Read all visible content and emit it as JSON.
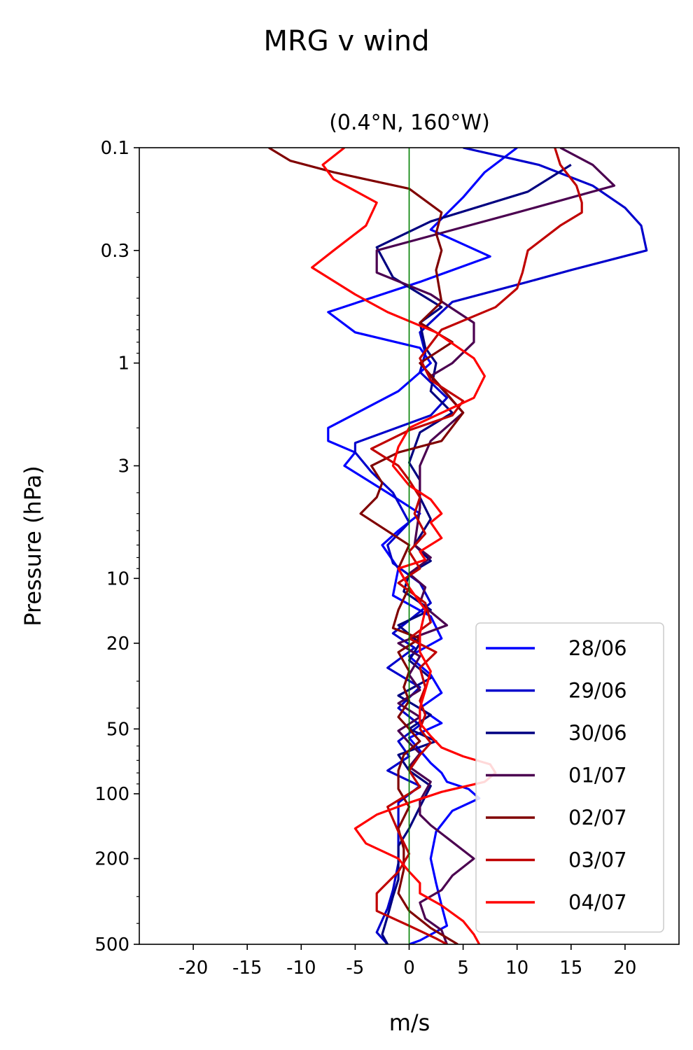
{
  "chart_data": {
    "type": "line",
    "title": "MRG v wind",
    "subtitle": "(0.4°N, 160°W)",
    "xlabel": "m/s",
    "ylabel": "Pressure (hPa)",
    "xlim": [
      -25,
      25
    ],
    "ylim": [
      500,
      0.1
    ],
    "yscale": "log",
    "x_ticks": [
      -20,
      -15,
      -10,
      -5,
      0,
      5,
      10,
      15,
      20
    ],
    "y_ticks": [
      0.1,
      0.3,
      1,
      3,
      10,
      20,
      50,
      100,
      200,
      500
    ],
    "zero_line_color": "#008000",
    "legend_position": "lower right",
    "series": [
      {
        "name": "28/06",
        "color": "#0000ff",
        "points": [
          [
            10,
            0.1
          ],
          [
            7,
            0.13
          ],
          [
            5,
            0.17
          ],
          [
            2,
            0.24
          ],
          [
            7.5,
            0.32
          ],
          [
            1,
            0.42
          ],
          [
            -7.5,
            0.58
          ],
          [
            -5,
            0.72
          ],
          [
            1,
            0.85
          ],
          [
            2,
            1.0
          ],
          [
            -1,
            1.35
          ],
          [
            -7.5,
            2.0
          ],
          [
            -7.5,
            2.3
          ],
          [
            -5,
            2.6
          ],
          [
            -6,
            3.0
          ],
          [
            -2,
            4.0
          ],
          [
            1,
            5.0
          ],
          [
            -1,
            6.0
          ],
          [
            -2.5,
            7.0
          ],
          [
            -1,
            9.0
          ],
          [
            -1.5,
            12
          ],
          [
            2,
            15
          ],
          [
            3,
            19
          ],
          [
            0,
            23
          ],
          [
            2,
            28
          ],
          [
            3,
            34
          ],
          [
            1,
            40
          ],
          [
            3,
            47
          ],
          [
            0,
            55
          ],
          [
            1,
            63
          ],
          [
            2,
            72
          ],
          [
            3,
            80
          ],
          [
            3.5,
            88
          ],
          [
            5.5,
            95
          ],
          [
            6.5,
            105
          ],
          [
            4,
            120
          ],
          [
            2.5,
            150
          ],
          [
            2,
            200
          ],
          [
            2.5,
            260
          ],
          [
            3,
            330
          ],
          [
            3.5,
            410
          ],
          [
            1,
            480
          ],
          [
            0,
            500
          ]
        ]
      },
      {
        "name": "29/06",
        "color": "#0000cc",
        "points": [
          [
            5,
            0.1
          ],
          [
            12,
            0.12
          ],
          [
            17,
            0.15
          ],
          [
            20,
            0.19
          ],
          [
            21.5,
            0.23
          ],
          [
            22,
            0.3
          ],
          [
            15,
            0.37
          ],
          [
            11,
            0.42
          ],
          [
            4,
            0.52
          ],
          [
            1,
            0.72
          ],
          [
            1.5,
            0.9
          ],
          [
            1,
            1.1
          ],
          [
            3.5,
            1.45
          ],
          [
            2,
            1.75
          ],
          [
            -5,
            2.35
          ],
          [
            -5,
            2.6
          ],
          [
            -3.5,
            3.2
          ],
          [
            -1.5,
            4.0
          ],
          [
            0,
            5.5
          ],
          [
            -2,
            7.0
          ],
          [
            -1.5,
            8.5
          ],
          [
            1,
            10.5
          ],
          [
            2,
            13
          ],
          [
            -1.5,
            18
          ],
          [
            0.5,
            21
          ],
          [
            -2,
            26
          ],
          [
            1,
            32
          ],
          [
            -1,
            40
          ],
          [
            1,
            48
          ],
          [
            -1,
            57
          ],
          [
            0,
            67
          ],
          [
            -2,
            78
          ],
          [
            1,
            92
          ],
          [
            -1,
            110
          ],
          [
            -1,
            150
          ],
          [
            -1,
            210
          ],
          [
            -1.5,
            280
          ],
          [
            -2,
            340
          ],
          [
            -3,
            440
          ],
          [
            -2,
            500
          ]
        ]
      },
      {
        "name": "30/06",
        "color": "#000080",
        "points": [
          [
            15,
            0.12
          ],
          [
            11,
            0.16
          ],
          [
            2,
            0.22
          ],
          [
            -3,
            0.29
          ],
          [
            -1.5,
            0.4
          ],
          [
            3,
            0.55
          ],
          [
            1,
            0.65
          ],
          [
            1.5,
            0.85
          ],
          [
            2.5,
            1.0
          ],
          [
            2,
            1.35
          ],
          [
            4,
            1.7
          ],
          [
            1,
            2.1
          ],
          [
            0,
            2.9
          ],
          [
            1,
            3.5
          ],
          [
            1,
            4.2
          ],
          [
            2,
            5.3
          ],
          [
            0.5,
            7.0
          ],
          [
            2,
            8.3
          ],
          [
            0,
            9.5
          ],
          [
            -0.5,
            11.5
          ],
          [
            2,
            14
          ],
          [
            -1,
            16.5
          ],
          [
            1,
            20
          ],
          [
            0,
            24
          ],
          [
            2,
            29
          ],
          [
            -1,
            35
          ],
          [
            2,
            43
          ],
          [
            0,
            50
          ],
          [
            2.5,
            57
          ],
          [
            -1,
            66
          ],
          [
            0,
            78
          ],
          [
            2,
            92
          ],
          [
            1,
            115
          ],
          [
            0,
            145
          ],
          [
            -1,
            175
          ],
          [
            -1,
            210
          ],
          [
            -1,
            250
          ],
          [
            -1.5,
            300
          ],
          [
            -2,
            370
          ],
          [
            -2.5,
            450
          ],
          [
            -2,
            500
          ]
        ]
      },
      {
        "name": "01/07",
        "color": "#4b0050",
        "points": [
          [
            14,
            0.1
          ],
          [
            17,
            0.12
          ],
          [
            19,
            0.15
          ],
          [
            10,
            0.2
          ],
          [
            -3,
            0.3
          ],
          [
            -3,
            0.38
          ],
          [
            2,
            0.48
          ],
          [
            6,
            0.65
          ],
          [
            6,
            0.8
          ],
          [
            4,
            1.0
          ],
          [
            2,
            1.15
          ],
          [
            5,
            1.7
          ],
          [
            2,
            2.3
          ],
          [
            1,
            3.0
          ],
          [
            1,
            3.7
          ],
          [
            1,
            4.7
          ],
          [
            0.5,
            7.0
          ],
          [
            2,
            8.0
          ],
          [
            0,
            9.5
          ],
          [
            1.5,
            11
          ],
          [
            1,
            13
          ],
          [
            3.5,
            16.5
          ],
          [
            -1,
            20
          ],
          [
            1,
            23
          ],
          [
            0,
            28
          ],
          [
            1,
            33
          ],
          [
            -1,
            38
          ],
          [
            1,
            44
          ],
          [
            -1,
            51
          ],
          [
            0,
            58
          ],
          [
            1,
            65
          ],
          [
            0,
            75
          ],
          [
            2,
            88
          ],
          [
            1,
            108
          ],
          [
            1,
            125
          ],
          [
            2,
            140
          ],
          [
            3.5,
            160
          ],
          [
            6,
            200
          ],
          [
            4,
            240
          ],
          [
            3,
            280
          ],
          [
            1,
            320
          ],
          [
            1.5,
            380
          ],
          [
            3,
            430
          ],
          [
            3.5,
            500
          ]
        ]
      },
      {
        "name": "02/07",
        "color": "#800000",
        "points": [
          [
            -13,
            0.1
          ],
          [
            -11,
            0.115
          ],
          [
            -7,
            0.13
          ],
          [
            0,
            0.155
          ],
          [
            3,
            0.2
          ],
          [
            2.5,
            0.25
          ],
          [
            3,
            0.3
          ],
          [
            2.5,
            0.37
          ],
          [
            3,
            0.52
          ],
          [
            1,
            0.65
          ],
          [
            4,
            0.8
          ],
          [
            1,
            1.0
          ],
          [
            3,
            1.3
          ],
          [
            5,
            1.7
          ],
          [
            3,
            2.3
          ],
          [
            -1,
            2.6
          ],
          [
            -3.5,
            3.0
          ],
          [
            -2.5,
            3.6
          ],
          [
            -3,
            4.2
          ],
          [
            -4.5,
            5.0
          ],
          [
            0,
            7.0
          ],
          [
            -1,
            9.0
          ],
          [
            0,
            11
          ],
          [
            -1,
            14
          ],
          [
            -1.5,
            17
          ],
          [
            1,
            19
          ],
          [
            -1,
            22
          ],
          [
            0,
            27
          ],
          [
            -0.5,
            32
          ],
          [
            0,
            37
          ],
          [
            -1,
            44
          ],
          [
            0,
            50
          ],
          [
            1,
            57
          ],
          [
            -0.5,
            66
          ],
          [
            -1,
            78
          ],
          [
            -1,
            95
          ],
          [
            0,
            115
          ],
          [
            -1,
            145
          ],
          [
            -0.5,
            180
          ],
          [
            -0.5,
            225
          ],
          [
            -1,
            290
          ],
          [
            0,
            350
          ],
          [
            2,
            420
          ],
          [
            4.5,
            500
          ]
        ]
      },
      {
        "name": "03/07",
        "color": "#c00000",
        "points": [
          [
            13.5,
            0.1
          ],
          [
            14,
            0.12
          ],
          [
            15.5,
            0.15
          ],
          [
            16,
            0.18
          ],
          [
            16,
            0.2
          ],
          [
            14,
            0.23
          ],
          [
            11,
            0.3
          ],
          [
            10.5,
            0.38
          ],
          [
            10,
            0.45
          ],
          [
            8,
            0.55
          ],
          [
            3,
            0.7
          ],
          [
            1,
            0.95
          ],
          [
            2,
            1.2
          ],
          [
            5,
            1.5
          ],
          [
            4,
            1.75
          ],
          [
            0,
            2.05
          ],
          [
            -3.5,
            2.5
          ],
          [
            -1,
            3.0
          ],
          [
            0,
            3.5
          ],
          [
            1,
            4.2
          ],
          [
            0.5,
            5.0
          ],
          [
            1.5,
            6.2
          ],
          [
            0,
            7.5
          ],
          [
            1,
            9.0
          ],
          [
            -1,
            10.5
          ],
          [
            1.5,
            13
          ],
          [
            2,
            16
          ],
          [
            0,
            19
          ],
          [
            2.5,
            22
          ],
          [
            1,
            26
          ],
          [
            1.5,
            32
          ],
          [
            1,
            37
          ],
          [
            1.5,
            43
          ],
          [
            1,
            50
          ],
          [
            2,
            58
          ],
          [
            1,
            66
          ],
          [
            0,
            78
          ],
          [
            1,
            93
          ],
          [
            -2,
            115
          ],
          [
            -1,
            150
          ],
          [
            0,
            190
          ],
          [
            -1,
            230
          ],
          [
            -3,
            290
          ],
          [
            -3,
            350
          ],
          [
            0,
            410
          ],
          [
            2.5,
            470
          ],
          [
            3.5,
            500
          ]
        ]
      },
      {
        "name": "04/07",
        "color": "#ff0000",
        "points": [
          [
            -6,
            0.1
          ],
          [
            -8,
            0.12
          ],
          [
            -7,
            0.14
          ],
          [
            -3,
            0.18
          ],
          [
            -4,
            0.23
          ],
          [
            -7,
            0.3
          ],
          [
            -9,
            0.36
          ],
          [
            -5,
            0.48
          ],
          [
            -2,
            0.58
          ],
          [
            2.5,
            0.72
          ],
          [
            6,
            0.95
          ],
          [
            7,
            1.15
          ],
          [
            6,
            1.45
          ],
          [
            0,
            2.0
          ],
          [
            -1,
            2.45
          ],
          [
            -1.5,
            3.0
          ],
          [
            0,
            3.7
          ],
          [
            2,
            4.3
          ],
          [
            3,
            5.0
          ],
          [
            2,
            5.5
          ],
          [
            3,
            6.5
          ],
          [
            1,
            7.5
          ],
          [
            1.5,
            8.2
          ],
          [
            -1,
            9.0
          ],
          [
            0,
            11
          ],
          [
            1.5,
            14
          ],
          [
            1,
            18
          ],
          [
            1,
            22
          ],
          [
            2,
            27
          ],
          [
            1.5,
            33
          ],
          [
            1,
            40
          ],
          [
            1,
            47
          ],
          [
            2,
            54
          ],
          [
            3,
            61
          ],
          [
            5,
            67
          ],
          [
            7.5,
            73
          ],
          [
            8,
            80
          ],
          [
            7,
            88
          ],
          [
            3,
            98
          ],
          [
            0,
            110
          ],
          [
            -3,
            125
          ],
          [
            -5,
            145
          ],
          [
            -4,
            170
          ],
          [
            -1,
            200
          ],
          [
            0,
            230
          ],
          [
            1,
            260
          ],
          [
            1,
            290
          ],
          [
            3,
            330
          ],
          [
            5,
            390
          ],
          [
            6,
            450
          ],
          [
            6.5,
            500
          ]
        ]
      }
    ]
  }
}
